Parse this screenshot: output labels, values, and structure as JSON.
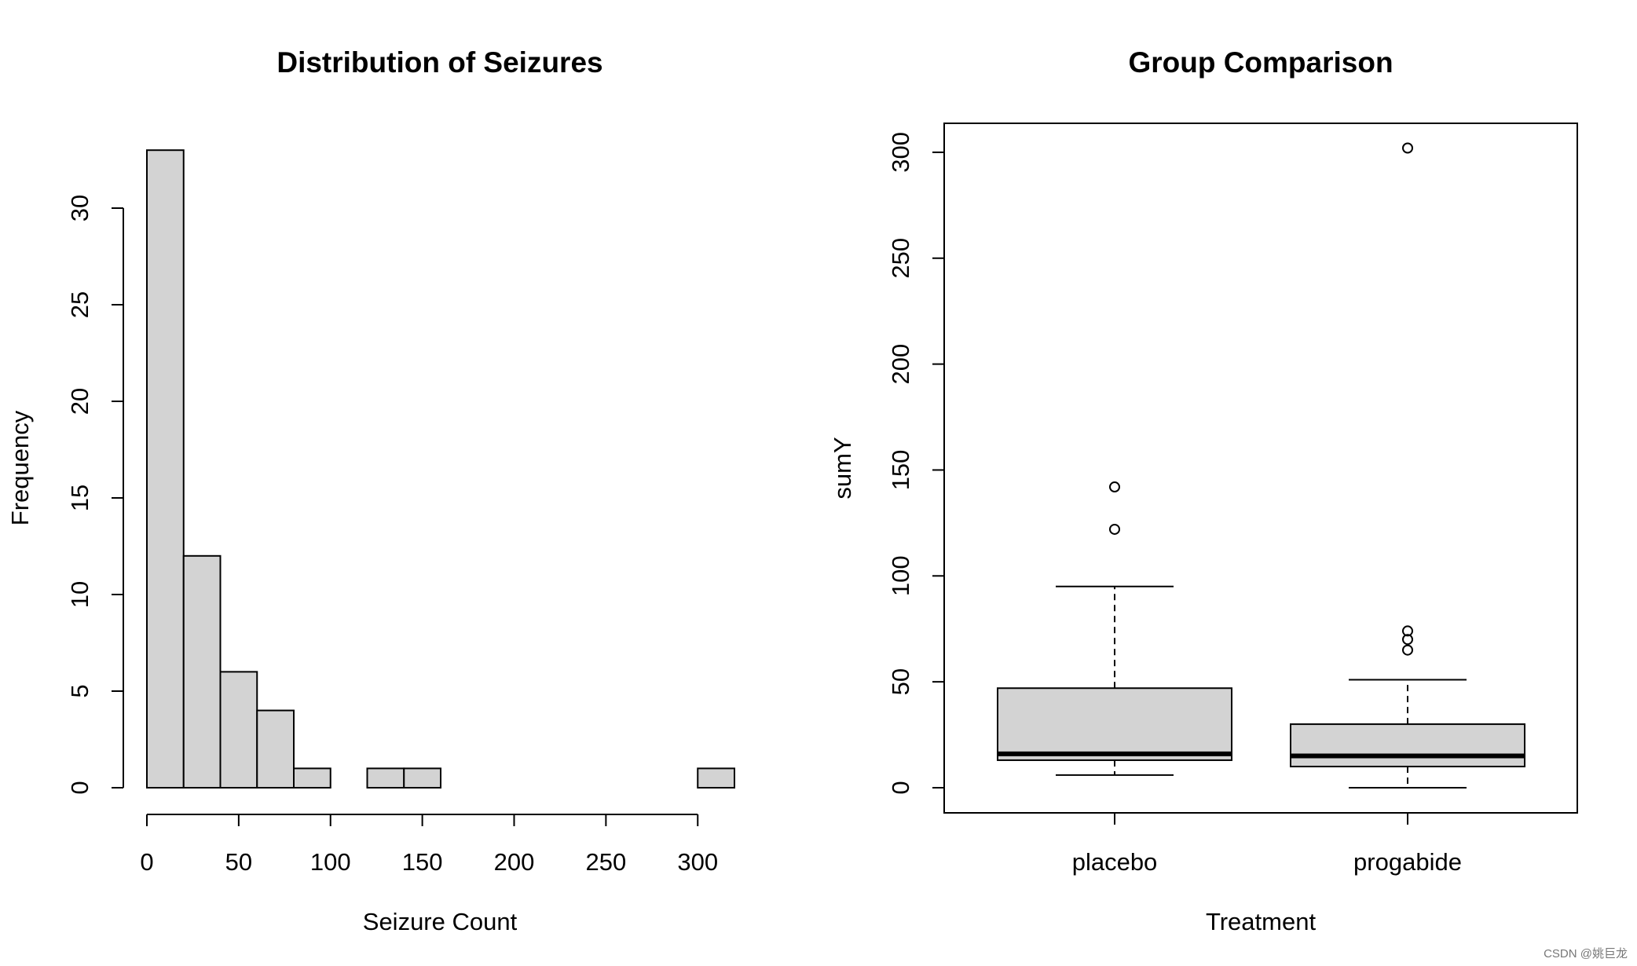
{
  "chart_data": [
    {
      "type": "histogram",
      "title": "Distribution of Seizures",
      "xlabel": "Seizure Count",
      "ylabel": "Frequency",
      "bin_width": 20,
      "bins": [
        {
          "start": 0,
          "end": 20,
          "count": 33
        },
        {
          "start": 20,
          "end": 40,
          "count": 12
        },
        {
          "start": 40,
          "end": 60,
          "count": 6
        },
        {
          "start": 60,
          "end": 80,
          "count": 4
        },
        {
          "start": 80,
          "end": 100,
          "count": 1
        },
        {
          "start": 100,
          "end": 120,
          "count": 0
        },
        {
          "start": 120,
          "end": 140,
          "count": 1
        },
        {
          "start": 140,
          "end": 160,
          "count": 1
        },
        {
          "start": 160,
          "end": 180,
          "count": 0
        },
        {
          "start": 180,
          "end": 200,
          "count": 0
        },
        {
          "start": 200,
          "end": 220,
          "count": 0
        },
        {
          "start": 220,
          "end": 240,
          "count": 0
        },
        {
          "start": 240,
          "end": 260,
          "count": 0
        },
        {
          "start": 260,
          "end": 280,
          "count": 0
        },
        {
          "start": 280,
          "end": 300,
          "count": 0
        },
        {
          "start": 300,
          "end": 320,
          "count": 1
        }
      ],
      "xticks": [
        0,
        50,
        100,
        150,
        200,
        250,
        300
      ],
      "yticks": [
        0,
        5,
        10,
        15,
        20,
        25,
        30
      ],
      "xlim": [
        0,
        320
      ],
      "ylim": [
        0,
        33
      ],
      "bar_color": "#d3d3d3"
    },
    {
      "type": "boxplot",
      "title": "Group Comparison",
      "xlabel": "Treatment",
      "ylabel": "sumY",
      "categories": [
        "placebo",
        "progabide"
      ],
      "boxes": [
        {
          "category": "placebo",
          "whisker_low": 6,
          "q1": 13,
          "median": 16,
          "q3": 47,
          "whisker_high": 95,
          "outliers": [
            122,
            142
          ]
        },
        {
          "category": "progabide",
          "whisker_low": 0,
          "q1": 10,
          "median": 15,
          "q3": 30,
          "whisker_high": 51,
          "outliers": [
            65,
            70,
            74,
            302
          ]
        }
      ],
      "yticks": [
        0,
        50,
        100,
        150,
        200,
        250,
        300
      ],
      "ylim": [
        -12,
        314
      ],
      "box_color": "#d3d3d3"
    }
  ],
  "watermark": "CSDN @姚巨龙"
}
